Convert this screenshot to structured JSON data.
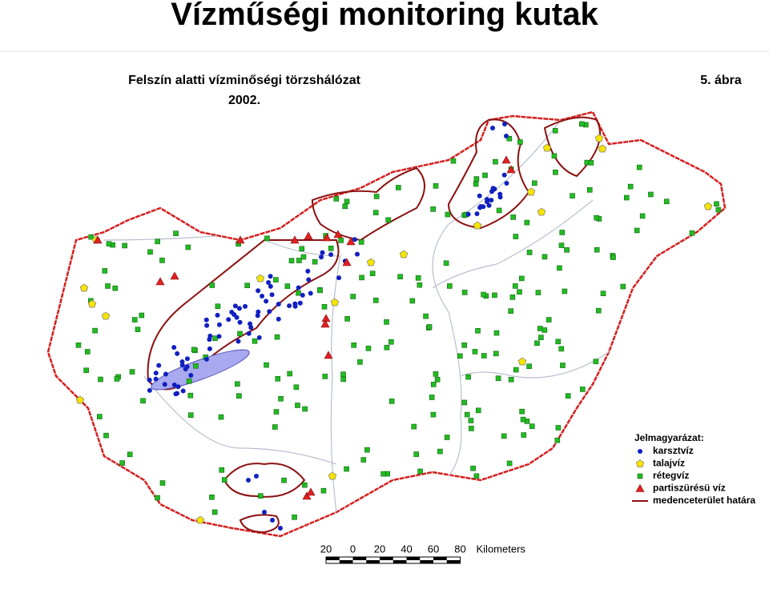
{
  "header": {
    "title": "Vízműségi monitoring kutak"
  },
  "map": {
    "title": "Felszín alatti vízminőségi törzshálózat",
    "year": "2002.",
    "figure": "5. ábra",
    "legend": {
      "title": "Jelmagyarázat:",
      "items": [
        "karsztvíz",
        "talajvíz",
        "rétegvíz",
        "partiszürésü víz",
        "medenceterület határa"
      ]
    },
    "scale": {
      "labels": [
        "20",
        "0",
        "20",
        "40",
        "60",
        "80"
      ],
      "unit": "Kilometers"
    }
  }
}
